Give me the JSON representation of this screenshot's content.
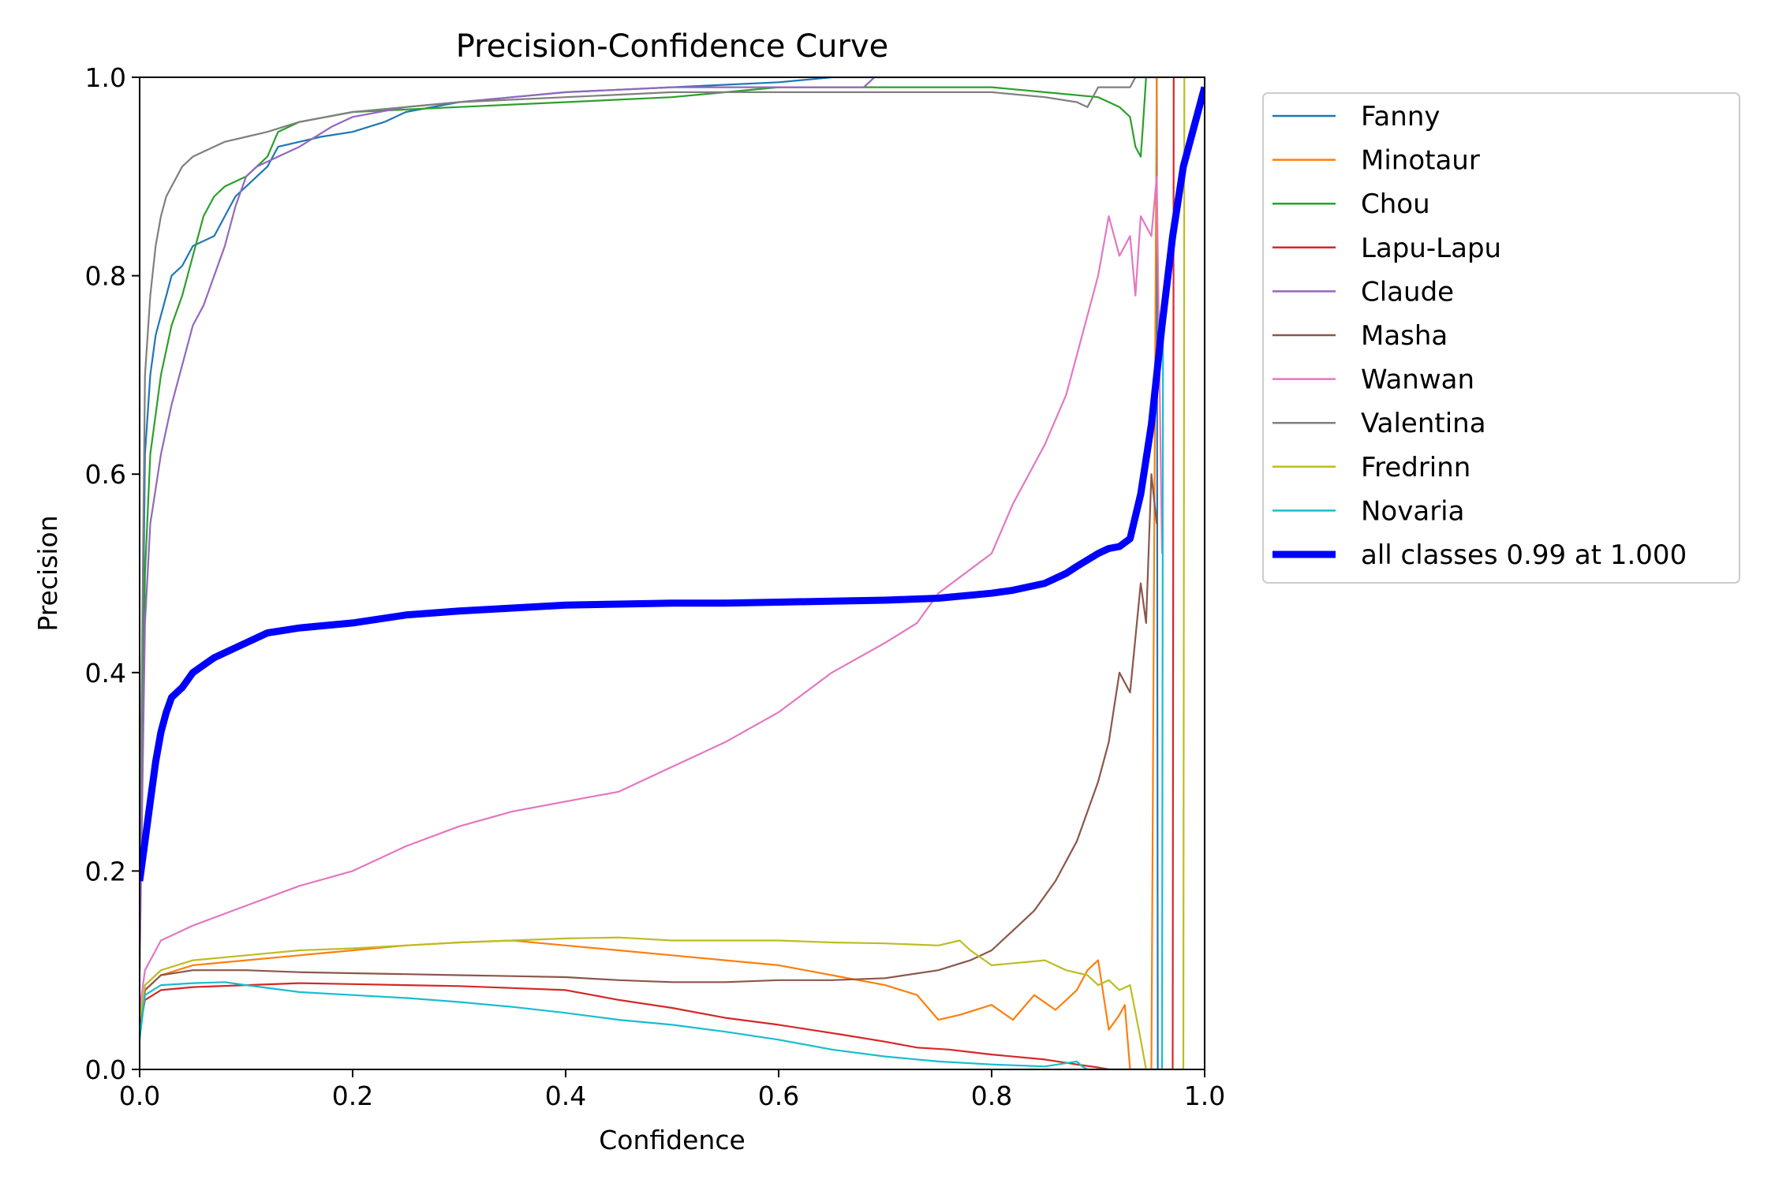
{
  "chart_data": {
    "type": "line",
    "title": "Precision-Confidence Curve",
    "xlabel": "Confidence",
    "ylabel": "Precision",
    "xlim": [
      0,
      1
    ],
    "ylim": [
      0,
      1
    ],
    "xticks": [
      "0.0",
      "0.2",
      "0.4",
      "0.6",
      "0.8",
      "1.0"
    ],
    "yticks": [
      "0.0",
      "0.2",
      "0.4",
      "0.6",
      "0.8",
      "1.0"
    ],
    "grid": false,
    "legend_position": "outside-right-top",
    "series": [
      {
        "name": "Fanny",
        "color": "#1f77b4",
        "width": "thin",
        "x": [
          0.0,
          0.005,
          0.01,
          0.015,
          0.02,
          0.025,
          0.03,
          0.04,
          0.05,
          0.07,
          0.08,
          0.09,
          0.1,
          0.12,
          0.13,
          0.15,
          0.17,
          0.2,
          0.23,
          0.25,
          0.3,
          0.35,
          0.4,
          0.5,
          0.6,
          0.65,
          0.7,
          0.95,
          0.955,
          0.956
        ],
        "y": [
          0.15,
          0.62,
          0.7,
          0.74,
          0.76,
          0.78,
          0.8,
          0.81,
          0.83,
          0.84,
          0.86,
          0.88,
          0.89,
          0.91,
          0.93,
          0.935,
          0.94,
          0.945,
          0.955,
          0.965,
          0.975,
          0.98,
          0.985,
          0.99,
          0.995,
          1.0,
          1.0,
          1.0,
          1.0,
          0.0
        ]
      },
      {
        "name": "Minotaur",
        "color": "#ff7f0e",
        "width": "thin",
        "x": [
          0.0,
          0.005,
          0.02,
          0.05,
          0.1,
          0.15,
          0.2,
          0.25,
          0.3,
          0.35,
          0.4,
          0.45,
          0.5,
          0.55,
          0.6,
          0.65,
          0.7,
          0.73,
          0.75,
          0.77,
          0.8,
          0.82,
          0.84,
          0.86,
          0.88,
          0.89,
          0.9,
          0.91,
          0.92,
          0.925,
          0.93,
          0.94,
          0.95,
          0.955,
          0.96
        ],
        "y": [
          0.04,
          0.08,
          0.095,
          0.105,
          0.11,
          0.115,
          0.12,
          0.125,
          0.128,
          0.13,
          0.125,
          0.12,
          0.115,
          0.11,
          0.105,
          0.095,
          0.085,
          0.075,
          0.05,
          0.055,
          0.065,
          0.05,
          0.075,
          0.06,
          0.08,
          0.1,
          0.11,
          0.04,
          0.055,
          0.065,
          0.0,
          0.0,
          0.0,
          1.0,
          1.0
        ]
      },
      {
        "name": "Chou",
        "color": "#2ca02c",
        "width": "thin",
        "x": [
          0.0,
          0.005,
          0.01,
          0.015,
          0.02,
          0.03,
          0.04,
          0.05,
          0.06,
          0.07,
          0.08,
          0.1,
          0.12,
          0.13,
          0.15,
          0.2,
          0.3,
          0.4,
          0.5,
          0.6,
          0.7,
          0.8,
          0.85,
          0.9,
          0.92,
          0.93,
          0.935,
          0.94,
          0.942,
          0.945
        ],
        "y": [
          0.1,
          0.5,
          0.62,
          0.66,
          0.7,
          0.75,
          0.78,
          0.82,
          0.86,
          0.88,
          0.89,
          0.9,
          0.92,
          0.945,
          0.955,
          0.965,
          0.97,
          0.975,
          0.98,
          0.99,
          0.99,
          0.99,
          0.985,
          0.98,
          0.97,
          0.96,
          0.93,
          0.92,
          0.95,
          1.0
        ]
      },
      {
        "name": "Lapu-Lapu",
        "color": "#d62728",
        "width": "thin",
        "x": [
          0.0,
          0.005,
          0.02,
          0.05,
          0.1,
          0.15,
          0.2,
          0.25,
          0.3,
          0.35,
          0.4,
          0.45,
          0.5,
          0.55,
          0.6,
          0.63,
          0.66,
          0.7,
          0.73,
          0.76,
          0.8,
          0.85,
          0.88,
          0.9,
          0.91,
          0.92,
          0.95,
          0.97,
          0.971
        ],
        "y": [
          0.04,
          0.07,
          0.08,
          0.083,
          0.085,
          0.087,
          0.086,
          0.085,
          0.084,
          0.082,
          0.08,
          0.07,
          0.062,
          0.052,
          0.045,
          0.04,
          0.035,
          0.028,
          0.022,
          0.02,
          0.015,
          0.01,
          0.005,
          0.002,
          0.0,
          0.0,
          0.0,
          0.0,
          1.0
        ]
      },
      {
        "name": "Claude",
        "color": "#9467bd",
        "width": "thin",
        "x": [
          0.0,
          0.005,
          0.01,
          0.02,
          0.03,
          0.04,
          0.05,
          0.06,
          0.07,
          0.08,
          0.09,
          0.1,
          0.11,
          0.13,
          0.15,
          0.18,
          0.2,
          0.25,
          0.3,
          0.35,
          0.4,
          0.5,
          0.6,
          0.65,
          0.68,
          0.685,
          0.69
        ],
        "y": [
          0.1,
          0.45,
          0.55,
          0.62,
          0.67,
          0.71,
          0.75,
          0.77,
          0.8,
          0.83,
          0.87,
          0.9,
          0.91,
          0.92,
          0.93,
          0.95,
          0.96,
          0.97,
          0.975,
          0.98,
          0.985,
          0.99,
          0.99,
          0.99,
          0.99,
          0.995,
          1.0
        ]
      },
      {
        "name": "Masha",
        "color": "#8c564b",
        "width": "thin",
        "x": [
          0.0,
          0.005,
          0.02,
          0.05,
          0.1,
          0.15,
          0.2,
          0.25,
          0.3,
          0.35,
          0.4,
          0.45,
          0.5,
          0.55,
          0.6,
          0.65,
          0.7,
          0.75,
          0.78,
          0.8,
          0.82,
          0.84,
          0.86,
          0.88,
          0.9,
          0.91,
          0.92,
          0.93,
          0.94,
          0.945,
          0.95,
          0.955
        ],
        "y": [
          0.04,
          0.08,
          0.095,
          0.1,
          0.1,
          0.098,
          0.097,
          0.096,
          0.095,
          0.094,
          0.093,
          0.09,
          0.088,
          0.088,
          0.09,
          0.09,
          0.092,
          0.1,
          0.11,
          0.12,
          0.14,
          0.16,
          0.19,
          0.23,
          0.29,
          0.33,
          0.4,
          0.38,
          0.49,
          0.45,
          0.6,
          0.55
        ]
      },
      {
        "name": "Wanwan",
        "color": "#e377c2",
        "width": "thin",
        "x": [
          0.0,
          0.005,
          0.02,
          0.05,
          0.1,
          0.15,
          0.2,
          0.25,
          0.3,
          0.35,
          0.4,
          0.45,
          0.5,
          0.55,
          0.6,
          0.65,
          0.7,
          0.73,
          0.75,
          0.8,
          0.82,
          0.85,
          0.87,
          0.9,
          0.91,
          0.92,
          0.93,
          0.935,
          0.94,
          0.95,
          0.955,
          0.96
        ],
        "y": [
          0.06,
          0.1,
          0.13,
          0.145,
          0.165,
          0.185,
          0.2,
          0.225,
          0.245,
          0.26,
          0.27,
          0.28,
          0.305,
          0.33,
          0.36,
          0.4,
          0.43,
          0.45,
          0.48,
          0.52,
          0.57,
          0.63,
          0.68,
          0.8,
          0.86,
          0.82,
          0.84,
          0.78,
          0.86,
          0.84,
          0.9,
          0.52
        ]
      },
      {
        "name": "Valentina",
        "color": "#7f7f7f",
        "width": "thin",
        "x": [
          0.0,
          0.005,
          0.01,
          0.015,
          0.02,
          0.025,
          0.03,
          0.04,
          0.05,
          0.06,
          0.08,
          0.1,
          0.12,
          0.15,
          0.2,
          0.3,
          0.4,
          0.5,
          0.6,
          0.7,
          0.8,
          0.85,
          0.88,
          0.89,
          0.9,
          0.91,
          0.92,
          0.93,
          0.935
        ],
        "y": [
          0.2,
          0.7,
          0.78,
          0.83,
          0.86,
          0.88,
          0.89,
          0.91,
          0.92,
          0.925,
          0.935,
          0.94,
          0.945,
          0.955,
          0.965,
          0.975,
          0.98,
          0.985,
          0.985,
          0.985,
          0.985,
          0.98,
          0.975,
          0.97,
          0.99,
          0.99,
          0.99,
          0.99,
          1.0
        ]
      },
      {
        "name": "Fredrinn",
        "color": "#bcbd22",
        "width": "thin",
        "x": [
          0.0,
          0.005,
          0.02,
          0.05,
          0.1,
          0.15,
          0.2,
          0.25,
          0.3,
          0.35,
          0.4,
          0.45,
          0.5,
          0.55,
          0.6,
          0.65,
          0.7,
          0.75,
          0.77,
          0.78,
          0.8,
          0.85,
          0.87,
          0.89,
          0.9,
          0.91,
          0.92,
          0.93,
          0.94,
          0.945,
          0.95,
          0.97,
          0.98,
          0.981
        ],
        "y": [
          0.05,
          0.085,
          0.1,
          0.11,
          0.115,
          0.12,
          0.122,
          0.125,
          0.128,
          0.13,
          0.132,
          0.133,
          0.13,
          0.13,
          0.13,
          0.128,
          0.127,
          0.125,
          0.13,
          0.12,
          0.105,
          0.11,
          0.1,
          0.095,
          0.085,
          0.09,
          0.08,
          0.085,
          0.03,
          0.0,
          0.0,
          0.0,
          0.0,
          1.0
        ]
      },
      {
        "name": "Novaria",
        "color": "#17becf",
        "width": "thin",
        "x": [
          0.0,
          0.005,
          0.02,
          0.05,
          0.08,
          0.1,
          0.15,
          0.2,
          0.25,
          0.3,
          0.35,
          0.4,
          0.45,
          0.5,
          0.55,
          0.6,
          0.65,
          0.7,
          0.75,
          0.8,
          0.85,
          0.88,
          0.885,
          0.89,
          0.95,
          0.96,
          0.961
        ],
        "y": [
          0.03,
          0.075,
          0.085,
          0.087,
          0.088,
          0.085,
          0.078,
          0.075,
          0.072,
          0.068,
          0.063,
          0.057,
          0.05,
          0.045,
          0.038,
          0.03,
          0.02,
          0.013,
          0.008,
          0.005,
          0.003,
          0.008,
          0.003,
          0.0,
          0.0,
          0.0,
          0.78
        ]
      },
      {
        "name": "all classes 0.99 at 1.000",
        "color": "#0000ff",
        "width": "thick",
        "x": [
          0.0,
          0.005,
          0.01,
          0.015,
          0.02,
          0.025,
          0.03,
          0.04,
          0.05,
          0.07,
          0.1,
          0.12,
          0.15,
          0.2,
          0.25,
          0.3,
          0.35,
          0.4,
          0.45,
          0.5,
          0.55,
          0.6,
          0.65,
          0.7,
          0.75,
          0.8,
          0.82,
          0.85,
          0.87,
          0.88,
          0.9,
          0.91,
          0.92,
          0.93,
          0.94,
          0.95,
          0.96,
          0.97,
          0.98,
          0.99,
          1.0
        ],
        "y": [
          0.19,
          0.23,
          0.27,
          0.31,
          0.34,
          0.36,
          0.375,
          0.385,
          0.4,
          0.415,
          0.43,
          0.44,
          0.445,
          0.45,
          0.458,
          0.462,
          0.465,
          0.468,
          0.469,
          0.47,
          0.47,
          0.471,
          0.472,
          0.473,
          0.475,
          0.48,
          0.483,
          0.49,
          0.5,
          0.507,
          0.52,
          0.525,
          0.527,
          0.535,
          0.58,
          0.65,
          0.75,
          0.84,
          0.91,
          0.95,
          0.99
        ]
      }
    ]
  }
}
